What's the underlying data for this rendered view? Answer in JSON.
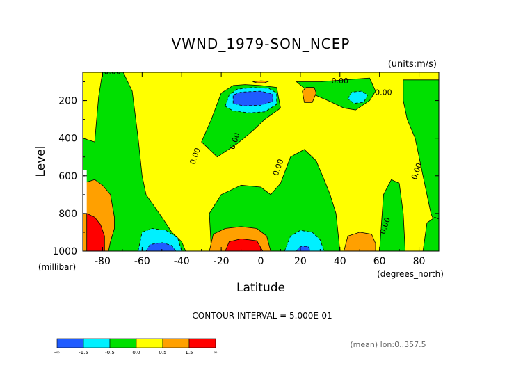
{
  "chart_data": {
    "type": "heatmap",
    "title": "VWND_1979-SON_NCEP",
    "units": "(units:m/s)",
    "xlabel": "Latitude",
    "ylabel": "Level",
    "x_unit": "(degrees_north)",
    "y_unit": "(millibar)",
    "x_ticks": [
      "-80",
      "-60",
      "-40",
      "-20",
      "0",
      "20",
      "40",
      "60",
      "80"
    ],
    "x_tick_values": [
      -80,
      -60,
      -40,
      -20,
      0,
      20,
      40,
      60,
      80
    ],
    "y_ticks": [
      "200",
      "400",
      "600",
      "800",
      "1000"
    ],
    "y_tick_values": [
      200,
      400,
      600,
      800,
      1000
    ],
    "xlim": [
      -90,
      90
    ],
    "ylim": [
      1000,
      10
    ],
    "contour_interval_text": "CONTOUR INTERVAL = 5.000E-01",
    "footnote": "(mean) lon:0..357.5",
    "contour_labels": [
      {
        "text": "0.00",
        "lat": -75,
        "lev": 60
      },
      {
        "text": "0.00",
        "lat": -32,
        "lev": 500
      },
      {
        "text": "0.00",
        "lat": -12,
        "lev": 420
      },
      {
        "text": "0.00",
        "lat": 10,
        "lev": 560
      },
      {
        "text": "0.00",
        "lat": 40,
        "lev": 110
      },
      {
        "text": "0.00",
        "lat": 62,
        "lev": 170
      },
      {
        "text": "0.00",
        "lat": 80,
        "lev": 580
      },
      {
        "text": "0.00",
        "lat": 64,
        "lev": 870
      }
    ],
    "colorbar": {
      "colors": [
        "#1f5bff",
        "#00f0ff",
        "#00e000",
        "#ffff00",
        "#ffa000",
        "#ff0000"
      ],
      "labels": [
        "-∞",
        "-1.5",
        "-0.5",
        "0.0",
        "0.5",
        "1.5",
        "∞"
      ]
    },
    "background_color": "#ffff00",
    "regions": [
      {
        "level": 0,
        "color": "#00e000",
        "points": [
          [
            -90,
            400
          ],
          [
            -84,
            420
          ],
          [
            -82,
            180
          ],
          [
            -80,
            50
          ],
          [
            -70,
            40
          ],
          [
            -65,
            150
          ],
          [
            -62,
            400
          ],
          [
            -60,
            600
          ],
          [
            -58,
            700
          ],
          [
            -50,
            820
          ],
          [
            -45,
            900
          ],
          [
            -40,
            950
          ],
          [
            -38,
            1000
          ],
          [
            -90,
            1000
          ]
        ]
      },
      {
        "level": 0,
        "color": "#00e000",
        "points": [
          [
            -30,
            420
          ],
          [
            -22,
            500
          ],
          [
            -12,
            430
          ],
          [
            -4,
            360
          ],
          [
            2,
            300
          ],
          [
            6,
            270
          ],
          [
            10,
            240
          ],
          [
            8,
            130
          ],
          [
            0,
            120
          ],
          [
            -8,
            115
          ],
          [
            -14,
            120
          ],
          [
            -20,
            160
          ],
          [
            -25,
            300
          ]
        ]
      },
      {
        "level": 0,
        "color": "#00e000",
        "points": [
          [
            -25,
            1000
          ],
          [
            -26,
            800
          ],
          [
            -20,
            700
          ],
          [
            -10,
            650
          ],
          [
            0,
            660
          ],
          [
            5,
            700
          ],
          [
            10,
            640
          ],
          [
            15,
            500
          ],
          [
            22,
            460
          ],
          [
            28,
            520
          ],
          [
            32,
            620
          ],
          [
            35,
            700
          ],
          [
            38,
            800
          ],
          [
            40,
            1000
          ]
        ]
      },
      {
        "level": 0,
        "color": "#00e000",
        "points": [
          [
            18,
            100
          ],
          [
            30,
            100
          ],
          [
            42,
            90
          ],
          [
            55,
            80
          ],
          [
            58,
            150
          ],
          [
            55,
            200
          ],
          [
            48,
            250
          ],
          [
            42,
            240
          ],
          [
            34,
            200
          ],
          [
            25,
            160
          ]
        ]
      },
      {
        "level": 0,
        "color": "#00e000",
        "points": [
          [
            72,
            90
          ],
          [
            90,
            90
          ],
          [
            90,
            900
          ],
          [
            86,
            800
          ],
          [
            82,
            600
          ],
          [
            78,
            400
          ],
          [
            74,
            300
          ],
          [
            72,
            200
          ]
        ]
      },
      {
        "level": 0,
        "color": "#00e000",
        "points": [
          [
            60,
            1000
          ],
          [
            62,
            700
          ],
          [
            66,
            620
          ],
          [
            70,
            640
          ],
          [
            72,
            800
          ],
          [
            73,
            1000
          ]
        ]
      },
      {
        "level": 0,
        "color": "#00e000",
        "points": [
          [
            82,
            1000
          ],
          [
            84,
            850
          ],
          [
            88,
            820
          ],
          [
            90,
            830
          ],
          [
            90,
            1000
          ]
        ]
      },
      {
        "level": -1,
        "color": "#00f0ff",
        "points": [
          [
            -62,
            1000
          ],
          [
            -60,
            900
          ],
          [
            -55,
            880
          ],
          [
            -48,
            890
          ],
          [
            -42,
            930
          ],
          [
            -40,
            1000
          ]
        ]
      },
      {
        "level": -1,
        "color": "#00f0ff",
        "points": [
          [
            -18,
            230
          ],
          [
            -16,
            170
          ],
          [
            -12,
            140
          ],
          [
            -4,
            130
          ],
          [
            4,
            135
          ],
          [
            8,
            160
          ],
          [
            8,
            220
          ],
          [
            2,
            260
          ],
          [
            -6,
            265
          ],
          [
            -14,
            255
          ]
        ]
      },
      {
        "level": -1,
        "color": "#00f0ff",
        "points": [
          [
            12,
            1000
          ],
          [
            15,
            920
          ],
          [
            20,
            890
          ],
          [
            26,
            900
          ],
          [
            30,
            940
          ],
          [
            32,
            1000
          ]
        ]
      },
      {
        "level": -1,
        "color": "#00f0ff",
        "points": [
          [
            44,
            190
          ],
          [
            46,
            155
          ],
          [
            51,
            150
          ],
          [
            54,
            170
          ],
          [
            52,
            210
          ],
          [
            47,
            215
          ]
        ]
      },
      {
        "level": -2,
        "color": "#1f5bff",
        "points": [
          [
            -14,
            215
          ],
          [
            -14,
            170
          ],
          [
            -10,
            155
          ],
          [
            0,
            150
          ],
          [
            6,
            165
          ],
          [
            6,
            205
          ],
          [
            0,
            225
          ],
          [
            -9,
            228
          ]
        ]
      },
      {
        "level": -2,
        "color": "#1f5bff",
        "points": [
          [
            -58,
            1000
          ],
          [
            -56,
            965
          ],
          [
            -50,
            955
          ],
          [
            -45,
            970
          ],
          [
            -43,
            1000
          ]
        ]
      },
      {
        "level": -2,
        "color": "#1f5bff",
        "points": [
          [
            18,
            1000
          ],
          [
            20,
            975
          ],
          [
            24,
            975
          ],
          [
            25,
            1000
          ]
        ]
      },
      {
        "level": 1,
        "color": "#ffa000",
        "points": [
          [
            -90,
            640
          ],
          [
            -84,
            620
          ],
          [
            -80,
            650
          ],
          [
            -76,
            700
          ],
          [
            -74,
            820
          ],
          [
            -74,
            880
          ],
          [
            -76,
            950
          ],
          [
            -77,
            1000
          ],
          [
            -90,
            1000
          ]
        ]
      },
      {
        "level": 1,
        "color": "#ffa000",
        "points": [
          [
            -26,
            1000
          ],
          [
            -24,
            910
          ],
          [
            -18,
            880
          ],
          [
            -10,
            870
          ],
          [
            -2,
            880
          ],
          [
            3,
            920
          ],
          [
            5,
            1000
          ]
        ]
      },
      {
        "level": 1,
        "color": "#ffa000",
        "points": [
          [
            42,
            1000
          ],
          [
            44,
            920
          ],
          [
            50,
            900
          ],
          [
            56,
            910
          ],
          [
            58,
            960
          ],
          [
            58,
            1000
          ]
        ]
      },
      {
        "level": 1,
        "color": "#ffa000",
        "points": [
          [
            21,
            150
          ],
          [
            23,
            130
          ],
          [
            27,
            130
          ],
          [
            28,
            160
          ],
          [
            26,
            210
          ],
          [
            22,
            210
          ]
        ]
      },
      {
        "level": 1,
        "color": "#ffa000",
        "points": [
          [
            -4,
            100
          ],
          [
            0,
            95
          ],
          [
            4,
            97
          ],
          [
            2,
            105
          ],
          [
            -2,
            106
          ]
        ]
      },
      {
        "level": 2,
        "color": "#ff0000",
        "points": [
          [
            -88,
            800
          ],
          [
            -84,
            820
          ],
          [
            -81,
            860
          ],
          [
            -79,
            920
          ],
          [
            -79,
            1000
          ],
          [
            -88,
            1000
          ]
        ]
      },
      {
        "level": 2,
        "color": "#ff0000",
        "points": [
          [
            -18,
            1000
          ],
          [
            -16,
            950
          ],
          [
            -10,
            935
          ],
          [
            -2,
            945
          ],
          [
            1,
            1000
          ]
        ]
      }
    ],
    "unshaded": [
      {
        "points": [
          [
            -90,
            570
          ],
          [
            -88,
            570
          ],
          [
            -88,
            800
          ],
          [
            -90,
            800
          ]
        ]
      }
    ]
  }
}
